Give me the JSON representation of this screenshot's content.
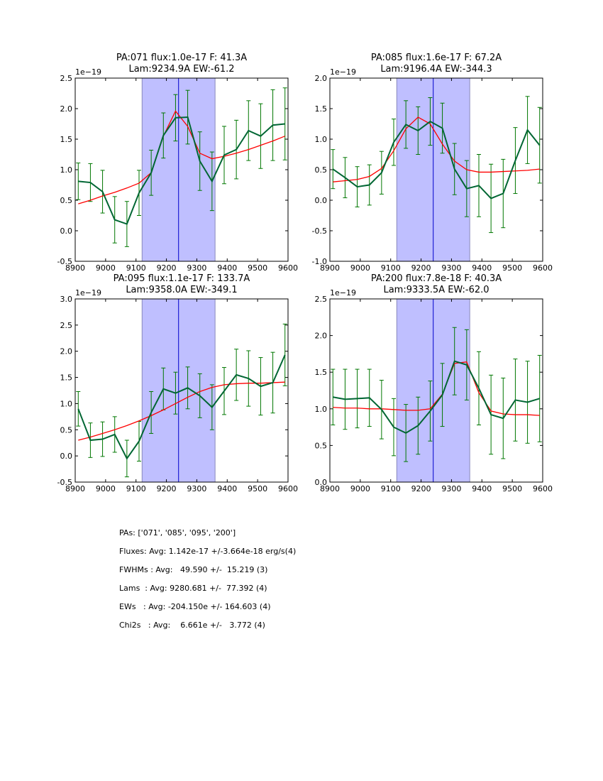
{
  "chart_data": [
    {
      "type": "line",
      "title": [
        "PA:071 flux:1.0e-17 F: 41.3A",
        "Lam:9234.9A EW:-61.2"
      ],
      "offset_label": "1e−19",
      "xlim": [
        8900,
        9600
      ],
      "ylim": [
        -0.5,
        2.5
      ],
      "xticks": [
        8900,
        9000,
        9100,
        9200,
        9300,
        9400,
        9500,
        9600
      ],
      "yticks": [
        "-0.5",
        "0.0",
        "0.5",
        "1.0",
        "1.5",
        "2.0",
        "2.5"
      ],
      "span": [
        9120,
        9360
      ],
      "center_line": 9240,
      "x": [
        8910,
        8950,
        8990,
        9030,
        9070,
        9110,
        9150,
        9190,
        9230,
        9270,
        9310,
        9350,
        9390,
        9430,
        9470,
        9510,
        9550,
        9590
      ],
      "series": [
        {
          "name": "data",
          "color": "#006633",
          "values": [
            0.81,
            0.79,
            0.64,
            0.18,
            0.11,
            0.62,
            0.95,
            1.56,
            1.85,
            1.86,
            1.14,
            0.81,
            1.24,
            1.33,
            1.64,
            1.55,
            1.73,
            1.75
          ],
          "err": [
            0.3,
            0.31,
            0.35,
            0.38,
            0.37,
            0.37,
            0.37,
            0.37,
            0.38,
            0.44,
            0.48,
            0.48,
            0.47,
            0.48,
            0.49,
            0.53,
            0.58,
            0.59
          ]
        },
        {
          "name": "fit",
          "color": "#ff0000",
          "values": [
            0.44,
            0.5,
            0.57,
            0.63,
            0.7,
            0.78,
            0.95,
            1.55,
            1.96,
            1.71,
            1.27,
            1.18,
            1.22,
            1.27,
            1.33,
            1.4,
            1.47,
            1.55
          ]
        }
      ]
    },
    {
      "type": "line",
      "title": [
        "PA:085 flux:1.6e-17 F: 67.2A",
        "Lam:9196.4A EW:-344.3"
      ],
      "offset_label": "1e−19",
      "xlim": [
        8900,
        9600
      ],
      "ylim": [
        -1.0,
        2.0
      ],
      "xticks": [
        8900,
        9000,
        9100,
        9200,
        9300,
        9400,
        9500,
        9600
      ],
      "yticks": [
        "-1.0",
        "-0.5",
        "0.0",
        "0.5",
        "1.0",
        "1.5",
        "2.0"
      ],
      "span": [
        9120,
        9360
      ],
      "center_line": 9240,
      "x": [
        8910,
        8950,
        8990,
        9030,
        9070,
        9110,
        9150,
        9190,
        9230,
        9270,
        9310,
        9350,
        9390,
        9430,
        9470,
        9510,
        9550,
        9590
      ],
      "series": [
        {
          "name": "data",
          "color": "#006633",
          "values": [
            0.51,
            0.37,
            0.22,
            0.25,
            0.45,
            0.95,
            1.24,
            1.14,
            1.29,
            1.18,
            0.51,
            0.19,
            0.24,
            0.03,
            0.11,
            0.65,
            1.15,
            0.9
          ],
          "err": [
            0.32,
            0.33,
            0.33,
            0.33,
            0.35,
            0.38,
            0.39,
            0.39,
            0.39,
            0.41,
            0.42,
            0.46,
            0.51,
            0.56,
            0.56,
            0.54,
            0.55,
            0.62
          ]
        },
        {
          "name": "fit",
          "color": "#ff0000",
          "values": [
            0.3,
            0.32,
            0.34,
            0.39,
            0.52,
            0.81,
            1.17,
            1.36,
            1.25,
            0.92,
            0.64,
            0.5,
            0.46,
            0.46,
            0.47,
            0.48,
            0.49,
            0.51
          ]
        }
      ]
    },
    {
      "type": "line",
      "title": [
        "PA:095 flux:1.1e-17 F: 133.7A",
        "Lam:9358.0A EW:-349.1"
      ],
      "offset_label": "1e−19",
      "xlim": [
        8900,
        9600
      ],
      "ylim": [
        -0.5,
        3.0
      ],
      "xticks": [
        8900,
        9000,
        9100,
        9200,
        9300,
        9400,
        9500,
        9600
      ],
      "yticks": [
        "-0.5",
        "0.0",
        "0.5",
        "1.0",
        "1.5",
        "2.0",
        "2.5",
        "3.0"
      ],
      "span": [
        9120,
        9360
      ],
      "center_line": 9240,
      "x": [
        8910,
        8950,
        8990,
        9030,
        9070,
        9110,
        9150,
        9190,
        9230,
        9270,
        9310,
        9350,
        9390,
        9430,
        9470,
        9510,
        9550,
        9590
      ],
      "series": [
        {
          "name": "data",
          "color": "#006633",
          "values": [
            0.9,
            0.3,
            0.32,
            0.41,
            -0.05,
            0.28,
            0.83,
            1.28,
            1.2,
            1.3,
            1.15,
            0.93,
            1.24,
            1.55,
            1.48,
            1.33,
            1.4,
            1.93
          ],
          "err": [
            0.33,
            0.33,
            0.33,
            0.34,
            0.35,
            0.38,
            0.4,
            0.4,
            0.4,
            0.4,
            0.42,
            0.43,
            0.45,
            0.49,
            0.53,
            0.55,
            0.58,
            0.59
          ]
        },
        {
          "name": "fit",
          "color": "#ff0000",
          "values": [
            0.3,
            0.36,
            0.43,
            0.5,
            0.58,
            0.67,
            0.77,
            0.88,
            1.0,
            1.12,
            1.23,
            1.31,
            1.36,
            1.38,
            1.39,
            1.39,
            1.4,
            1.41
          ]
        }
      ]
    },
    {
      "type": "line",
      "title": [
        "PA:200 flux:7.8e-18 F: 40.3A",
        "Lam:9333.5A EW:-62.0"
      ],
      "offset_label": "1e−19",
      "xlim": [
        8900,
        9600
      ],
      "ylim": [
        0.0,
        2.5
      ],
      "xticks": [
        8900,
        9000,
        9100,
        9200,
        9300,
        9400,
        9500,
        9600
      ],
      "yticks": [
        "0.0",
        "0.5",
        "1.0",
        "1.5",
        "2.0",
        "2.5"
      ],
      "span": [
        9120,
        9360
      ],
      "center_line": 9240,
      "x": [
        8910,
        8950,
        8990,
        9030,
        9070,
        9110,
        9150,
        9190,
        9230,
        9270,
        9310,
        9350,
        9390,
        9430,
        9470,
        9510,
        9550,
        9590
      ],
      "series": [
        {
          "name": "data",
          "color": "#006633",
          "values": [
            1.16,
            1.13,
            1.14,
            1.15,
            0.99,
            0.75,
            0.67,
            0.77,
            0.97,
            1.19,
            1.65,
            1.6,
            1.28,
            0.92,
            0.87,
            1.12,
            1.09,
            1.14
          ],
          "err": [
            0.38,
            0.41,
            0.4,
            0.39,
            0.4,
            0.39,
            0.39,
            0.39,
            0.41,
            0.43,
            0.46,
            0.48,
            0.5,
            0.54,
            0.55,
            0.56,
            0.56,
            0.59
          ]
        },
        {
          "name": "fit",
          "color": "#ff0000",
          "values": [
            1.02,
            1.01,
            1.01,
            1.0,
            1.0,
            0.99,
            0.98,
            0.98,
            1.0,
            1.2,
            1.62,
            1.64,
            1.22,
            0.97,
            0.93,
            0.92,
            0.92,
            0.91
          ]
        }
      ]
    }
  ],
  "colors": {
    "span_fill": "#bfbfff",
    "span_edge": "#8888bb",
    "center_line": "#0000cc",
    "data_line": "#006633",
    "errorbar": "#007700",
    "fit_line": "#ff0000"
  },
  "stats": [
    "PAs: ['071', '085', '095', '200']",
    "Fluxes: Avg: 1.142e-17 +/-3.664e-18 erg/s(4)",
    "FWHMs : Avg:   49.590 +/-  15.219 (3)",
    "Lams  : Avg: 9280.681 +/-  77.392 (4)",
    "EWs   : Avg: -204.150e +/- 164.603 (4)",
    "Chi2s   : Avg:    6.661e +/-   3.772 (4)"
  ]
}
